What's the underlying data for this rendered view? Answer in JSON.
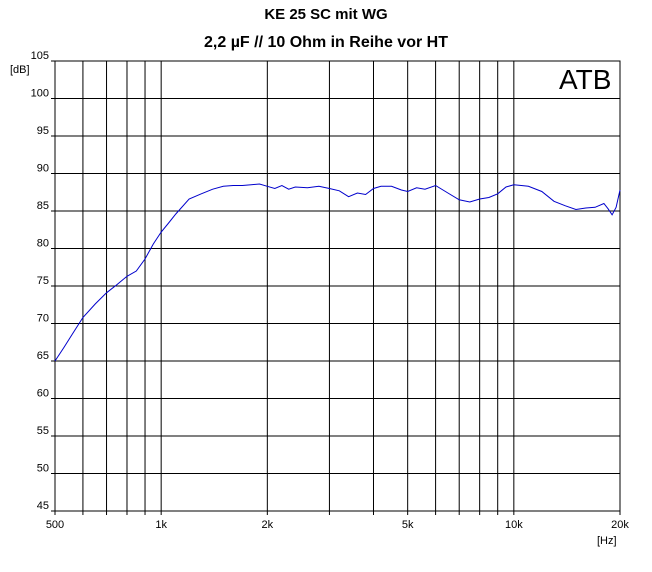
{
  "chart_data": {
    "type": "line",
    "title": "KE 25 SC mit WG",
    "subtitle": "2,2 µF // 10 Ohm in Reihe vor HT",
    "watermark": "ATB",
    "ylabel": "[dB]",
    "xlabel": "[Hz]",
    "x_scale": "log",
    "xlim": [
      500,
      20000
    ],
    "ylim": [
      45,
      105
    ],
    "grid": true,
    "line_color": "#0000cc",
    "y_ticks": [
      {
        "value": 45,
        "label": "45"
      },
      {
        "value": 50,
        "label": "50"
      },
      {
        "value": 55,
        "label": "55"
      },
      {
        "value": 60,
        "label": "60"
      },
      {
        "value": 65,
        "label": "65"
      },
      {
        "value": 70,
        "label": "70"
      },
      {
        "value": 75,
        "label": "75"
      },
      {
        "value": 80,
        "label": "80"
      },
      {
        "value": 85,
        "label": "85"
      },
      {
        "value": 90,
        "label": "90"
      },
      {
        "value": 95,
        "label": "95"
      },
      {
        "value": 100,
        "label": "100"
      },
      {
        "value": 105,
        "label": "105"
      }
    ],
    "x_ticks": [
      {
        "value": 500,
        "label": "500"
      },
      {
        "value": 1000,
        "label": "1k"
      },
      {
        "value": 2000,
        "label": "2k"
      },
      {
        "value": 5000,
        "label": "5k"
      },
      {
        "value": 10000,
        "label": "10k"
      },
      {
        "value": 20000,
        "label": "20k"
      }
    ],
    "x_grid": [
      500,
      600,
      700,
      800,
      900,
      1000,
      2000,
      3000,
      4000,
      5000,
      6000,
      7000,
      8000,
      9000,
      10000,
      20000
    ],
    "series": [
      {
        "x": [
          500,
          530,
          560,
          600,
          650,
          700,
          750,
          800,
          850,
          900,
          950,
          1000,
          1050,
          1100,
          1200,
          1300,
          1400,
          1500,
          1600,
          1700,
          1800,
          1900,
          2000,
          2100,
          2200,
          2300,
          2400,
          2600,
          2800,
          3000,
          3200,
          3400,
          3600,
          3800,
          4000,
          4200,
          4500,
          4800,
          5000,
          5300,
          5600,
          6000,
          6500,
          7000,
          7500,
          8000,
          8500,
          9000,
          9500,
          10000,
          10500,
          11000,
          12000,
          13000,
          14000,
          15000,
          16000,
          17000,
          18000,
          18500,
          19000,
          19500,
          20000
        ],
        "y": [
          65.0,
          66.8,
          68.6,
          70.8,
          72.6,
          74.1,
          75.2,
          76.3,
          77.0,
          78.6,
          80.6,
          82.2,
          83.4,
          84.6,
          86.6,
          87.3,
          87.9,
          88.3,
          88.4,
          88.4,
          88.5,
          88.6,
          88.3,
          88.0,
          88.4,
          87.9,
          88.2,
          88.1,
          88.3,
          88.0,
          87.7,
          86.9,
          87.4,
          87.2,
          88.0,
          88.3,
          88.3,
          87.8,
          87.6,
          88.1,
          87.9,
          88.4,
          87.4,
          86.5,
          86.2,
          86.6,
          86.8,
          87.3,
          88.2,
          88.5,
          88.4,
          88.3,
          87.6,
          86.3,
          85.7,
          85.2,
          85.4,
          85.5,
          86.0,
          85.3,
          84.5,
          85.5,
          87.8
        ]
      }
    ]
  }
}
